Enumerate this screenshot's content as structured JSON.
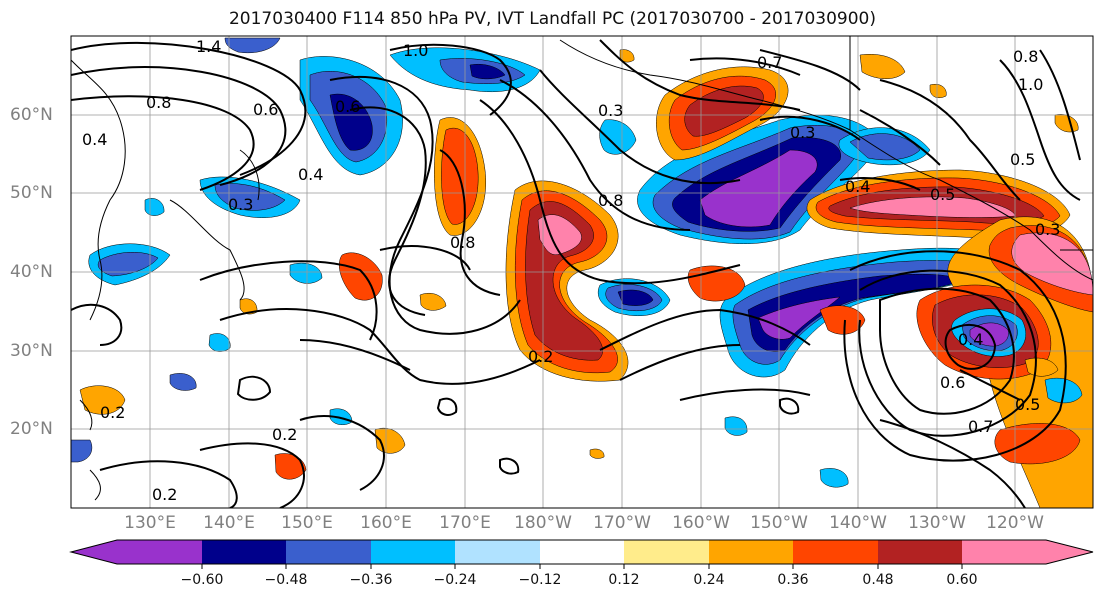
{
  "title": "2017030400 F114 850 hPa PV, IVT Landfall PC (2017030700 - 2017030900)",
  "lon_labels": [
    "130°E",
    "140°E",
    "150°E",
    "160°E",
    "170°E",
    "180°W",
    "170°W",
    "160°W",
    "150°W",
    "140°W",
    "130°W",
    "120°W"
  ],
  "lat_labels": [
    "60°N",
    "50°N",
    "40°N",
    "30°N",
    "20°N"
  ],
  "colorbar": {
    "tick_labels": [
      "−0.60",
      "−0.48",
      "−0.36",
      "−0.24",
      "−0.12",
      "0.12",
      "0.24",
      "0.36",
      "0.48",
      "0.60"
    ],
    "colors": [
      "#9932cc",
      "#00008b",
      "#3a5fcd",
      "#00bfff",
      "#b0e2ff",
      "#ffffff",
      "#ffec8b",
      "#ffa500",
      "#ff4500",
      "#b22222",
      "#ff82ab"
    ]
  },
  "contour_labels": [
    "1.4",
    "1.0",
    "0.7",
    "0.8",
    "1.0",
    "0.8",
    "0.6",
    "0.6",
    "0.4",
    "0.3",
    "0.4",
    "0.3",
    "0.8",
    "0.8",
    "0.3",
    "0.4",
    "0.5",
    "0.5",
    "0.3",
    "0.2",
    "0.2",
    "0.2",
    "0.2",
    "0.4",
    "0.6",
    "0.5",
    "0.7"
  ]
}
